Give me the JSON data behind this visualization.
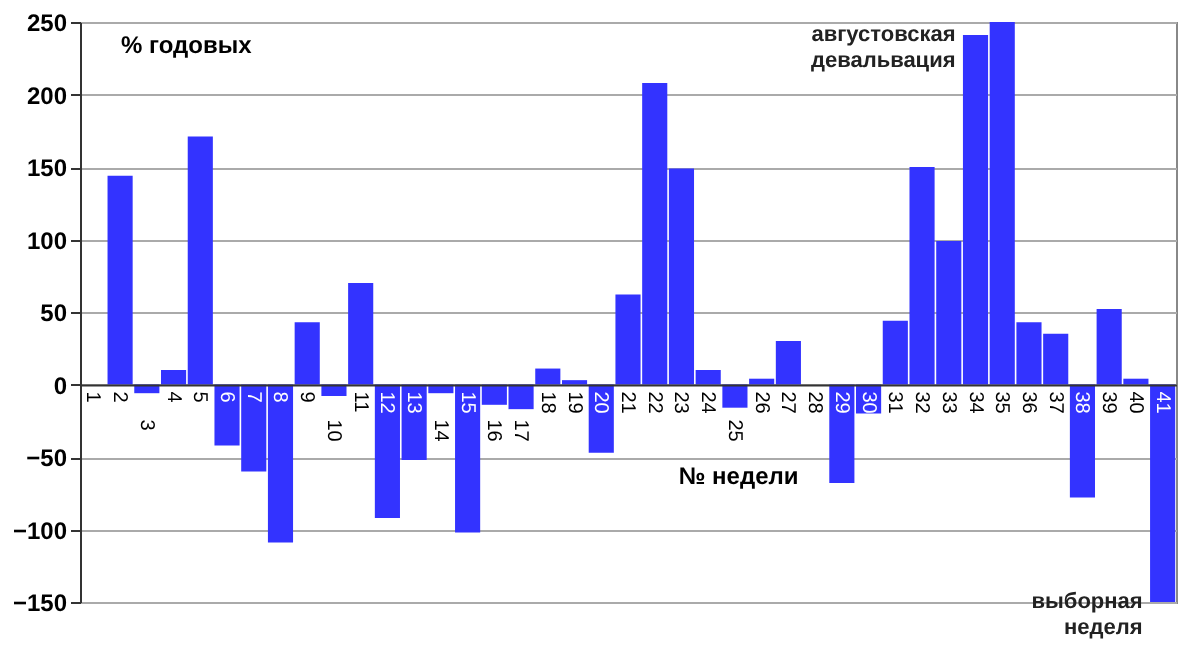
{
  "chart_data": {
    "type": "bar",
    "xlabel": "№ недели",
    "ylabel": "% годовых",
    "categories": [
      "1",
      "2",
      "3",
      "4",
      "5",
      "6",
      "7",
      "8",
      "9",
      "10",
      "11",
      "12",
      "13",
      "14",
      "15",
      "16",
      "17",
      "18",
      "19",
      "20",
      "21",
      "22",
      "23",
      "24",
      "25",
      "26",
      "27",
      "28",
      "29",
      "30",
      "31",
      "32",
      "33",
      "34",
      "35",
      "36",
      "37",
      "38",
      "39",
      "40",
      "41"
    ],
    "values": [
      0,
      144,
      -6,
      10,
      171,
      -42,
      -60,
      -109,
      43,
      -8,
      70,
      -92,
      -52,
      -6,
      -102,
      -14,
      -17,
      11,
      3,
      -47,
      62,
      208,
      149,
      10,
      -16,
      4,
      30,
      0,
      -68,
      -20,
      44,
      150,
      99,
      241,
      250,
      43,
      35,
      -78,
      52,
      4,
      -150
    ],
    "color": "#3333ff",
    "ylim": [
      -150,
      250
    ],
    "yticks": [
      -150,
      -100,
      -50,
      0,
      50,
      100,
      150,
      200,
      250
    ],
    "grid": "y",
    "annotations": [
      {
        "text": "августовская девальвация",
        "x": "34",
        "y": 241
      },
      {
        "text": "выборная неделя",
        "x": "41",
        "y": -150
      }
    ]
  }
}
